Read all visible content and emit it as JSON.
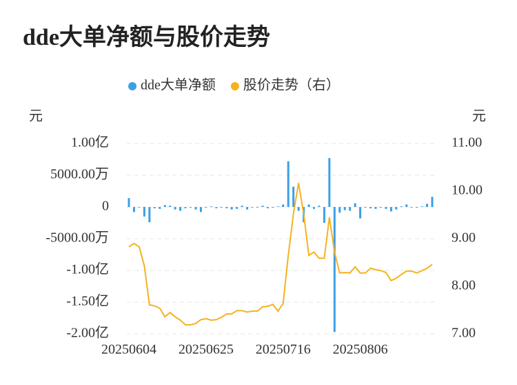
{
  "chart_data": {
    "type": "bar-line",
    "title": "dde大单净额与股价走势",
    "ylabel": "元",
    "y2label": "元",
    "categories": [
      "20250604",
      null,
      null,
      null,
      null,
      null,
      null,
      null,
      null,
      null,
      null,
      null,
      null,
      null,
      null,
      "20250625",
      null,
      null,
      null,
      null,
      null,
      null,
      null,
      null,
      null,
      null,
      null,
      null,
      null,
      null,
      "20250716",
      null,
      null,
      null,
      null,
      null,
      null,
      null,
      null,
      null,
      null,
      null,
      null,
      null,
      null,
      "20250806",
      null,
      null,
      null,
      null,
      null,
      null,
      null,
      null,
      null,
      null,
      null,
      null,
      null,
      null
    ],
    "series": [
      {
        "name": "dde大单净额",
        "type": "bar",
        "color": "#3b9fe6",
        "axis": "y",
        "values": [
          14000000,
          -8000000,
          -1000000,
          -15000000,
          -24000000,
          -2000000,
          -3000000,
          3000000,
          2000000,
          -4000000,
          -6000000,
          -2000000,
          -1000000,
          -4000000,
          -8000000,
          -1000000,
          1000000,
          -2000000,
          -1000000,
          -2000000,
          -4000000,
          -3000000,
          2000000,
          -4000000,
          -1000000,
          -1000000,
          2000000,
          -2000000,
          -1000000,
          1000000,
          4000000,
          72000000,
          32000000,
          -6000000,
          -24000000,
          4000000,
          -3000000,
          2000000,
          -25000000,
          77000000,
          -197000000,
          -9000000,
          -5000000,
          -6000000,
          6000000,
          -18000000,
          -1000000,
          -2000000,
          -3000000,
          -1000000,
          -3000000,
          -7000000,
          -4000000,
          1000000,
          4000000,
          -1000000,
          -1000000,
          1000000,
          5000000,
          16000000
        ]
      },
      {
        "name": "股价走势（右）",
        "type": "line",
        "color": "#f5b21d",
        "axis": "y2",
        "values": [
          8.83,
          8.9,
          8.83,
          8.43,
          7.61,
          7.59,
          7.54,
          7.36,
          7.45,
          7.36,
          7.29,
          7.19,
          7.19,
          7.22,
          7.3,
          7.32,
          7.29,
          7.3,
          7.35,
          7.42,
          7.42,
          7.49,
          7.49,
          7.46,
          7.48,
          7.48,
          7.57,
          7.58,
          7.62,
          7.48,
          7.64,
          8.65,
          9.52,
          10.17,
          9.52,
          8.65,
          8.72,
          8.59,
          8.59,
          9.45,
          8.72,
          8.28,
          8.29,
          8.28,
          8.41,
          8.28,
          8.28,
          8.38,
          8.35,
          8.33,
          8.29,
          8.12,
          8.17,
          8.25,
          8.32,
          8.32,
          8.28,
          8.33,
          8.38,
          8.46
        ]
      }
    ],
    "ylim": [
      -200000000,
      100000000
    ],
    "yticks": [
      {
        "value": 100000000,
        "label": "1.00亿"
      },
      {
        "value": 50000000,
        "label": "5000.00万"
      },
      0,
      {
        "value": -50000000,
        "label": "-5000.00万"
      },
      {
        "value": -100000000,
        "label": "-1.00亿"
      },
      {
        "value": -150000000,
        "label": "-1.50亿"
      },
      {
        "value": -200000000,
        "label": "-2.00亿"
      }
    ],
    "y2lim": [
      7,
      11
    ],
    "y2ticks": [
      {
        "value": 11,
        "label": "11.00"
      },
      {
        "value": 10,
        "label": "10.00"
      },
      {
        "value": 9,
        "label": "9.00"
      },
      {
        "value": 8,
        "label": "8.00"
      },
      {
        "value": 7,
        "label": "7.00"
      }
    ],
    "grid": true,
    "legend": "top"
  }
}
